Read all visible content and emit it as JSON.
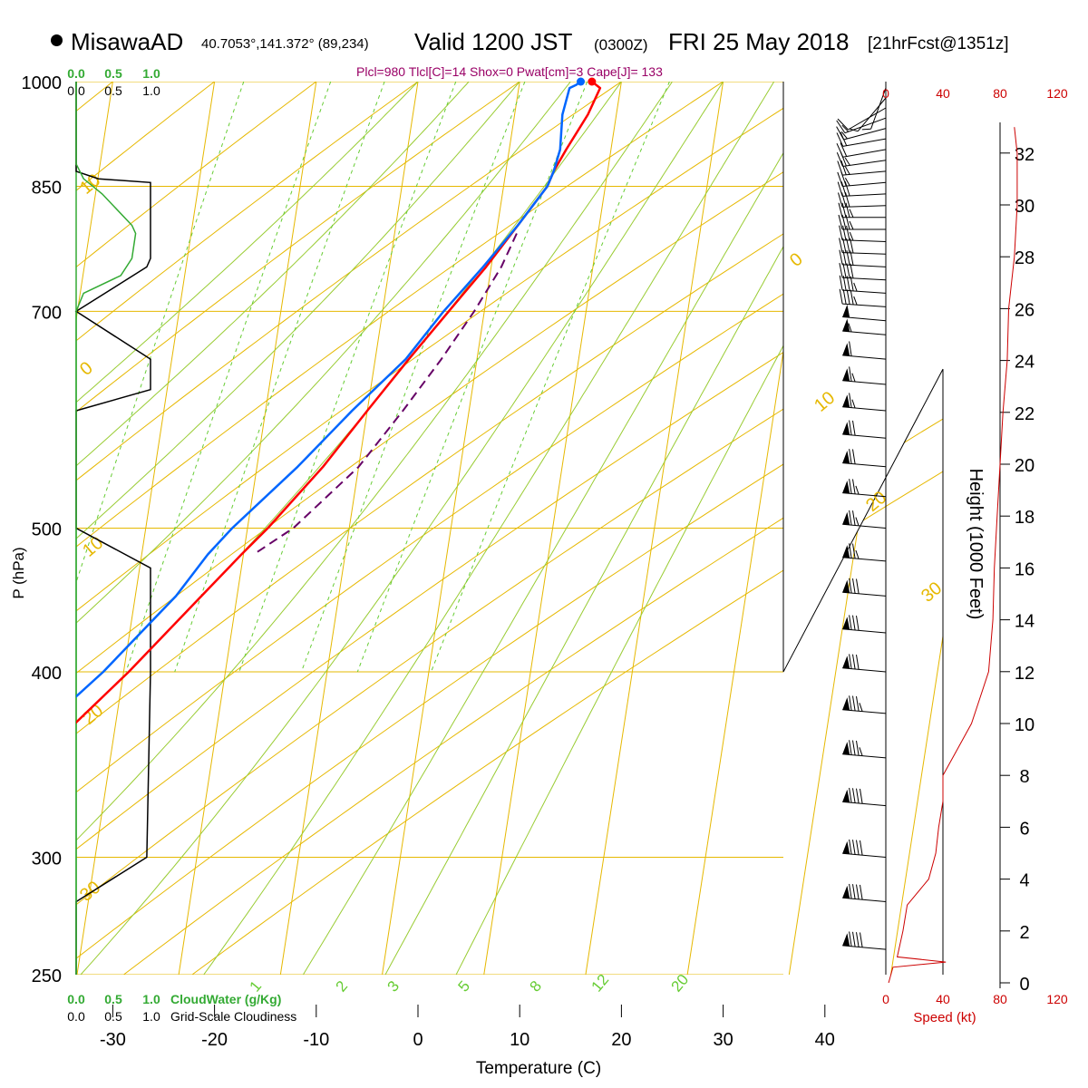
{
  "header": {
    "station": "MisawaAD",
    "coords": "40.7053°,141.372° (89,234)",
    "valid": "Valid 1200 JST",
    "valid_utc": "(0300Z)",
    "date": "FRI 25 May 2018",
    "forecast": "[21hrFcst@1351z]",
    "params": "Plcl=980 Tlcl[C]=14 Shox=0 Pwat[cm]=3 Cape[J]= 133"
  },
  "colors": {
    "isobar": "#e6b800",
    "dry_adiabat": "#e6b800",
    "moist_adiabat": "#99cc33",
    "mixing_ratio": "#66cc33",
    "temperature": "#ff0000",
    "dewpoint": "#0066ff",
    "parcel": "#660066",
    "cloud_water": "#33aa33",
    "cloudiness": "#000000",
    "speed": "#cc0000"
  },
  "chart_data": {
    "type": "line",
    "xlabel": "Temperature (C)",
    "ylabel": "P (hPa)",
    "x_ticks": [
      "-30",
      "-20",
      "-10",
      "0",
      "10",
      "20",
      "30",
      "40"
    ],
    "x_tick_values": [
      -30,
      -20,
      -10,
      0,
      10,
      20,
      30,
      40
    ],
    "pressure_ticks": [
      "250",
      "300",
      "400",
      "500",
      "700",
      "850",
      "1000"
    ],
    "pressure_values": [
      250,
      300,
      400,
      500,
      700,
      850,
      1000
    ],
    "pressure_range": [
      1000,
      250
    ],
    "skew_deg_per_ln": 9.75,
    "dry_adiabat_labels": [
      "10",
      "0",
      "10",
      "20",
      "30",
      "0",
      "10",
      "20",
      "30"
    ],
    "dry_adiabat_theta": [
      {
        "label": "10",
        "theta_c": -60
      },
      {
        "label": "0",
        "theta_c": -40
      },
      {
        "label": "10",
        "theta_c": -30
      },
      {
        "label": "20",
        "theta_c": -20
      },
      {
        "label": "30",
        "theta_c": -10
      },
      {
        "label": "0",
        "theta_c": 0
      },
      {
        "label": "10",
        "theta_c": 10
      },
      {
        "label": "20",
        "theta_c": 20
      },
      {
        "label": "30",
        "theta_c": 30
      }
    ],
    "mixing_ratio_labels": [
      "1",
      "2",
      "3",
      "5",
      "8",
      "12",
      "20"
    ],
    "mixing_ratio_values": [
      1,
      2,
      3,
      5,
      8,
      12,
      20
    ],
    "moist_adiabat_thetae": [
      0,
      5,
      10,
      15,
      20,
      25,
      30,
      35,
      40,
      45,
      50
    ],
    "series": [
      {
        "name": "temperature",
        "p": [
          1000,
          990,
          950,
          900,
          870,
          850,
          800,
          750,
          700,
          650,
          600,
          550,
          500,
          480,
          450,
          400,
          350,
          320,
          300,
          280,
          270,
          260
        ],
        "t": [
          17.1,
          18.0,
          17.2,
          15.6,
          14.7,
          14.3,
          12.0,
          9.5,
          6.5,
          3.3,
          0.0,
          -3.5,
          -8.0,
          -10.2,
          -13.5,
          -19.5,
          -27.0,
          -32.0,
          -36.5,
          -41.5,
          -43.5,
          -45.5
        ]
      },
      {
        "name": "dewpoint",
        "p": [
          1000,
          995,
          990,
          950,
          900,
          870,
          850,
          800,
          750,
          700,
          650,
          600,
          550,
          500,
          480,
          450,
          400,
          350,
          320,
          300,
          280,
          270,
          260
        ],
        "t": [
          16.0,
          15.6,
          15.0,
          14.7,
          15.0,
          14.7,
          14.3,
          12.0,
          9.2,
          6.0,
          3.0,
          -1.5,
          -6.0,
          -11.5,
          -13.5,
          -16.0,
          -22.0,
          -30.0,
          -35.0,
          -39.5,
          -45.0,
          -46.5,
          -48.5
        ]
      },
      {
        "name": "parcel",
        "p": [
          790,
          750,
          700,
          650,
          600,
          550,
          500,
          480
        ],
        "t": [
          12.0,
          11.0,
          9.0,
          6.5,
          3.5,
          0.0,
          -5.5,
          -9.0
        ]
      }
    ],
    "cloud_panel": {
      "x_ticks": [
        "0.0",
        "0.5",
        "1.0"
      ],
      "cloudwater_label": "CloudWater (g/Kg)",
      "cloudiness_label": "Grid-Scale Cloudiness",
      "cloudiness": {
        "p": [
          1000,
          870,
          860,
          855,
          760,
          750,
          700,
          650,
          620,
          600,
          500,
          470,
          400,
          300,
          280,
          250
        ],
        "v": [
          0.0,
          0.0,
          0.3,
          1.0,
          1.0,
          0.95,
          0.0,
          1.0,
          1.0,
          0.0,
          0.0,
          1.0,
          1.0,
          0.95,
          0.0,
          0.0
        ]
      },
      "cloudwater": {
        "p": [
          1000,
          880,
          860,
          840,
          800,
          790,
          760,
          740,
          720,
          700,
          250
        ],
        "v": [
          0.0,
          0.0,
          0.1,
          0.35,
          0.75,
          0.8,
          0.75,
          0.6,
          0.1,
          0.0,
          0.0
        ]
      }
    },
    "height_axis": {
      "label": "Height (1000 Feet)",
      "ticks": [
        "0",
        "2",
        "4",
        "6",
        "8",
        "10",
        "12",
        "14",
        "16",
        "18",
        "20",
        "22",
        "24",
        "26",
        "28",
        "30",
        "32"
      ],
      "values": [
        0,
        2,
        4,
        6,
        8,
        10,
        12,
        14,
        16,
        18,
        20,
        22,
        24,
        26,
        28,
        30,
        32
      ]
    },
    "speed_axis": {
      "label": "Speed (kt)",
      "ticks": [
        "0",
        "40",
        "80",
        "120"
      ],
      "values": [
        0,
        40,
        80,
        120
      ]
    },
    "wind_speed_profile": {
      "height_kft": [
        0,
        0.6,
        0.8,
        1.0,
        2,
        3,
        4,
        5,
        6,
        7,
        8,
        9,
        10,
        11,
        12,
        14,
        16,
        18,
        20,
        22,
        24,
        26,
        28,
        30,
        32,
        33
      ],
      "speed_kt": [
        2,
        5,
        42,
        8,
        12,
        15,
        30,
        35,
        37,
        40,
        40,
        50,
        60,
        66,
        72,
        75,
        76,
        78,
        80,
        82,
        85,
        86,
        90,
        92,
        92,
        90
      ]
    },
    "wind_barbs": [
      {
        "p": 990,
        "dir": 200,
        "spd": 5
      },
      {
        "p": 975,
        "dir": 220,
        "spd": 5
      },
      {
        "p": 960,
        "dir": 240,
        "spd": 10
      },
      {
        "p": 945,
        "dir": 250,
        "spd": 15
      },
      {
        "p": 930,
        "dir": 255,
        "spd": 15
      },
      {
        "p": 915,
        "dir": 260,
        "spd": 20
      },
      {
        "p": 900,
        "dir": 260,
        "spd": 20
      },
      {
        "p": 885,
        "dir": 262,
        "spd": 25
      },
      {
        "p": 870,
        "dir": 265,
        "spd": 25
      },
      {
        "p": 855,
        "dir": 265,
        "spd": 25
      },
      {
        "p": 840,
        "dir": 267,
        "spd": 30
      },
      {
        "p": 825,
        "dir": 268,
        "spd": 30
      },
      {
        "p": 810,
        "dir": 270,
        "spd": 35
      },
      {
        "p": 795,
        "dir": 270,
        "spd": 35
      },
      {
        "p": 780,
        "dir": 272,
        "spd": 35
      },
      {
        "p": 765,
        "dir": 272,
        "spd": 40
      },
      {
        "p": 750,
        "dir": 273,
        "spd": 40
      },
      {
        "p": 735,
        "dir": 273,
        "spd": 40
      },
      {
        "p": 720,
        "dir": 274,
        "spd": 45
      },
      {
        "p": 705,
        "dir": 274,
        "spd": 45
      },
      {
        "p": 690,
        "dir": 275,
        "spd": 50
      },
      {
        "p": 675,
        "dir": 275,
        "spd": 55
      },
      {
        "p": 650,
        "dir": 275,
        "spd": 60
      },
      {
        "p": 625,
        "dir": 275,
        "spd": 65
      },
      {
        "p": 600,
        "dir": 275,
        "spd": 65
      },
      {
        "p": 575,
        "dir": 275,
        "spd": 70
      },
      {
        "p": 550,
        "dir": 275,
        "spd": 70
      },
      {
        "p": 525,
        "dir": 275,
        "spd": 75
      },
      {
        "p": 500,
        "dir": 275,
        "spd": 75
      },
      {
        "p": 475,
        "dir": 275,
        "spd": 75
      },
      {
        "p": 450,
        "dir": 275,
        "spd": 80
      },
      {
        "p": 425,
        "dir": 275,
        "spd": 80
      },
      {
        "p": 400,
        "dir": 275,
        "spd": 80
      },
      {
        "p": 375,
        "dir": 275,
        "spd": 85
      },
      {
        "p": 350,
        "dir": 275,
        "spd": 85
      },
      {
        "p": 325,
        "dir": 275,
        "spd": 90
      },
      {
        "p": 300,
        "dir": 275,
        "spd": 90
      },
      {
        "p": 280,
        "dir": 275,
        "spd": 90
      },
      {
        "p": 260,
        "dir": 275,
        "spd": 90
      }
    ]
  }
}
